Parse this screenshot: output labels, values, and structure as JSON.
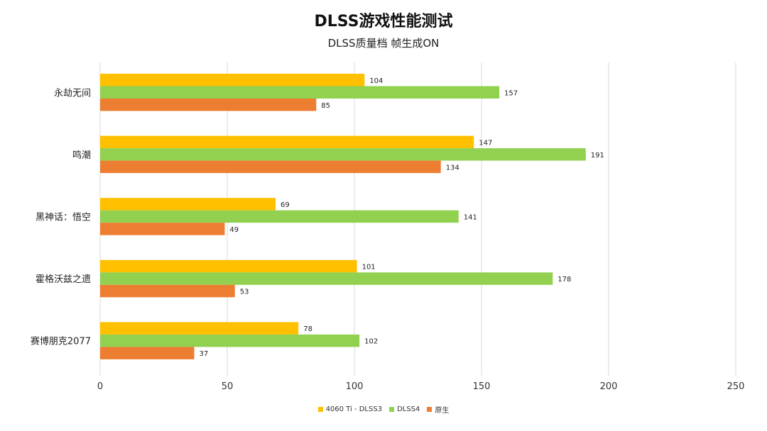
{
  "chart_data": {
    "type": "bar",
    "orientation": "horizontal",
    "title": "DLSS游戏性能测试",
    "subtitle": "DLSS质量档 帧生成ON",
    "categories": [
      "永劫无间",
      "鸣潮",
      "黑神话：悟空",
      "霍格沃兹之遗",
      "赛博朋克2077"
    ],
    "series": [
      {
        "name": "4060 Ti - DLSS3",
        "color": "#FFC000",
        "values": [
          104,
          147,
          69,
          101,
          78
        ]
      },
      {
        "name": "DLSS4",
        "color": "#92D050",
        "values": [
          157,
          191,
          141,
          178,
          102
        ]
      },
      {
        "name": "原生",
        "color": "#ED7D31",
        "values": [
          85,
          134,
          49,
          53,
          37
        ]
      }
    ],
    "xlim": [
      0,
      250
    ],
    "xticks": [
      0,
      50,
      100,
      150,
      200,
      250
    ],
    "grid": true,
    "legend_position": "bottom"
  }
}
